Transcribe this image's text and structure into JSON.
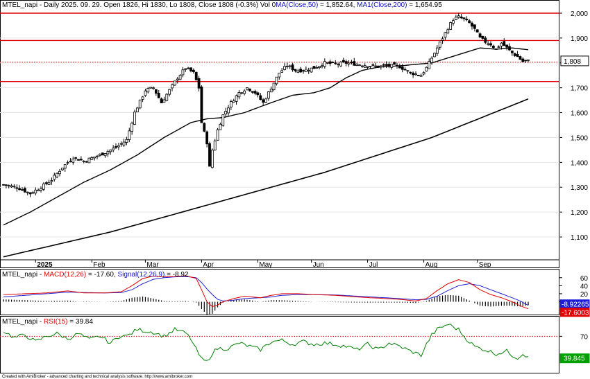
{
  "chart_data": [
    {
      "type": "candlestick",
      "title": {
        "symbol": "MTEL_napi",
        "info": " - Daily 2025. 09. 29. Open 1826, Hi 1830, Lo 1808, Close 1808 (-0.3%) Vol 0",
        "ma50_label": "MA(Close,50)",
        "ma50_value": " = 1,852.64,",
        "ma200_label": "MA1(Close,200)",
        "ma200_value": " = 1,654.95"
      },
      "ylim": [
        1000,
        2030
      ],
      "y_ticks": [
        1100,
        1200,
        1300,
        1400,
        1500,
        1600,
        1700,
        1800,
        1900,
        2000
      ],
      "y_tick_labels": [
        "1,100",
        "1,200",
        "1,300",
        "1,400",
        "1,500",
        "1,600",
        "1,700",
        "1,800",
        "1,900",
        "2,000"
      ],
      "last_price_label": "1,808",
      "last_price": 1808,
      "hlines": [
        2000,
        1890,
        1725
      ],
      "dotted_line": 1803,
      "months": [
        {
          "label": "2025",
          "index": 12
        },
        {
          "label": "Feb",
          "index": 33
        },
        {
          "label": "Mar",
          "index": 53
        },
        {
          "label": "Apr",
          "index": 74
        },
        {
          "label": "May",
          "index": 95
        },
        {
          "label": "Jun",
          "index": 115
        },
        {
          "label": "Jul",
          "index": 136
        },
        {
          "label": "Aug",
          "index": 157
        },
        {
          "label": "Sep",
          "index": 177
        }
      ],
      "n_bars": 197,
      "close_anchors": [
        [
          0,
          1310
        ],
        [
          5,
          1300
        ],
        [
          10,
          1275
        ],
        [
          14,
          1300
        ],
        [
          18,
          1330
        ],
        [
          22,
          1380
        ],
        [
          26,
          1420
        ],
        [
          30,
          1405
        ],
        [
          36,
          1430
        ],
        [
          42,
          1460
        ],
        [
          46,
          1490
        ],
        [
          49,
          1600
        ],
        [
          53,
          1690
        ],
        [
          56,
          1700
        ],
        [
          59,
          1640
        ],
        [
          62,
          1690
        ],
        [
          65,
          1740
        ],
        [
          68,
          1780
        ],
        [
          71,
          1760
        ],
        [
          73,
          1700
        ],
        [
          74,
          1560
        ],
        [
          76,
          1480
        ],
        [
          77,
          1380
        ],
        [
          78,
          1450
        ],
        [
          80,
          1530
        ],
        [
          82,
          1590
        ],
        [
          85,
          1640
        ],
        [
          88,
          1680
        ],
        [
          91,
          1700
        ],
        [
          94,
          1680
        ],
        [
          97,
          1640
        ],
        [
          100,
          1700
        ],
        [
          103,
          1760
        ],
        [
          106,
          1790
        ],
        [
          109,
          1770
        ],
        [
          112,
          1770
        ],
        [
          116,
          1780
        ],
        [
          120,
          1800
        ],
        [
          124,
          1795
        ],
        [
          128,
          1800
        ],
        [
          132,
          1795
        ],
        [
          136,
          1790
        ],
        [
          140,
          1785
        ],
        [
          144,
          1790
        ],
        [
          148,
          1785
        ],
        [
          152,
          1760
        ],
        [
          156,
          1750
        ],
        [
          158,
          1780
        ],
        [
          160,
          1820
        ],
        [
          162,
          1860
        ],
        [
          164,
          1900
        ],
        [
          166,
          1940
        ],
        [
          168,
          1975
        ],
        [
          170,
          1985
        ],
        [
          172,
          1975
        ],
        [
          174,
          1960
        ],
        [
          176,
          1935
        ],
        [
          178,
          1900
        ],
        [
          180,
          1885
        ],
        [
          182,
          1875
        ],
        [
          184,
          1855
        ],
        [
          186,
          1880
        ],
        [
          188,
          1860
        ],
        [
          190,
          1840
        ],
        [
          192,
          1825
        ],
        [
          194,
          1805
        ],
        [
          196,
          1808
        ]
      ],
      "ma50_anchors": [
        [
          0,
          1148
        ],
        [
          10,
          1200
        ],
        [
          20,
          1260
        ],
        [
          30,
          1320
        ],
        [
          40,
          1370
        ],
        [
          50,
          1430
        ],
        [
          60,
          1500
        ],
        [
          70,
          1560
        ],
        [
          76,
          1575
        ],
        [
          82,
          1580
        ],
        [
          90,
          1600
        ],
        [
          100,
          1640
        ],
        [
          108,
          1670
        ],
        [
          116,
          1680
        ],
        [
          122,
          1700
        ],
        [
          128,
          1740
        ],
        [
          134,
          1770
        ],
        [
          140,
          1783
        ],
        [
          150,
          1790
        ],
        [
          160,
          1800
        ],
        [
          166,
          1820
        ],
        [
          172,
          1840
        ],
        [
          178,
          1860
        ],
        [
          184,
          1855
        ],
        [
          190,
          1860
        ],
        [
          196,
          1853
        ]
      ],
      "ma200_anchors": [
        [
          0,
          1020
        ],
        [
          40,
          1120
        ],
        [
          80,
          1240
        ],
        [
          120,
          1360
        ],
        [
          160,
          1500
        ],
        [
          196,
          1655
        ]
      ]
    },
    {
      "type": "line",
      "title": {
        "symbol": "MTEL_napi",
        "sep": " - ",
        "macd_label": "MACD(12,26)",
        "macd_value": " = -17.60,",
        "signal_label": "Signal(12,26,9)",
        "signal_value": " = -8.92"
      },
      "ylim": [
        -25,
        70
      ],
      "y_ticks": [
        0,
        20,
        40,
        60
      ],
      "y_tick_labels": [
        "0",
        "20",
        "40",
        "60"
      ],
      "signal_value_label": "-8.92265",
      "macd_value_label": "-17.6003",
      "macd_anchors": [
        [
          0,
          18
        ],
        [
          8,
          20
        ],
        [
          16,
          22
        ],
        [
          24,
          27
        ],
        [
          30,
          22
        ],
        [
          38,
          22
        ],
        [
          44,
          25
        ],
        [
          48,
          40
        ],
        [
          52,
          58
        ],
        [
          56,
          64
        ],
        [
          60,
          62
        ],
        [
          64,
          63
        ],
        [
          68,
          65
        ],
        [
          72,
          58
        ],
        [
          74,
          30
        ],
        [
          76,
          0
        ],
        [
          78,
          -12
        ],
        [
          80,
          -8
        ],
        [
          82,
          0
        ],
        [
          86,
          8
        ],
        [
          90,
          14
        ],
        [
          96,
          10
        ],
        [
          100,
          16
        ],
        [
          104,
          20
        ],
        [
          110,
          20
        ],
        [
          116,
          18
        ],
        [
          124,
          16
        ],
        [
          132,
          12
        ],
        [
          140,
          9
        ],
        [
          148,
          6
        ],
        [
          154,
          2
        ],
        [
          158,
          8
        ],
        [
          162,
          28
        ],
        [
          166,
          45
        ],
        [
          170,
          55
        ],
        [
          174,
          48
        ],
        [
          178,
          30
        ],
        [
          182,
          18
        ],
        [
          186,
          10
        ],
        [
          190,
          0
        ],
        [
          193,
          -10
        ],
        [
          196,
          -17.6
        ]
      ],
      "signal_anchors": [
        [
          0,
          12
        ],
        [
          8,
          16
        ],
        [
          16,
          20
        ],
        [
          24,
          24
        ],
        [
          30,
          23
        ],
        [
          38,
          22
        ],
        [
          44,
          23
        ],
        [
          48,
          30
        ],
        [
          52,
          45
        ],
        [
          56,
          56
        ],
        [
          60,
          60
        ],
        [
          64,
          62
        ],
        [
          68,
          63
        ],
        [
          72,
          60
        ],
        [
          74,
          48
        ],
        [
          76,
          32
        ],
        [
          78,
          18
        ],
        [
          80,
          6
        ],
        [
          82,
          2
        ],
        [
          86,
          4
        ],
        [
          90,
          8
        ],
        [
          96,
          10
        ],
        [
          100,
          12
        ],
        [
          104,
          16
        ],
        [
          110,
          18
        ],
        [
          116,
          18
        ],
        [
          124,
          17
        ],
        [
          132,
          14
        ],
        [
          140,
          11
        ],
        [
          148,
          8
        ],
        [
          154,
          5
        ],
        [
          158,
          6
        ],
        [
          162,
          14
        ],
        [
          166,
          28
        ],
        [
          170,
          40
        ],
        [
          174,
          45
        ],
        [
          178,
          40
        ],
        [
          182,
          30
        ],
        [
          186,
          20
        ],
        [
          190,
          10
        ],
        [
          193,
          2
        ],
        [
          196,
          -8.92
        ]
      ]
    },
    {
      "type": "line",
      "title": {
        "symbol": "MTEL_napi",
        "sep": " - ",
        "rsi_label": "RSI(15)",
        "rsi_value": " = 39.84"
      },
      "ylim": [
        20,
        95
      ],
      "y_ticks": [
        70
      ],
      "y_tick_labels": [
        "70"
      ],
      "dotted_line": 70,
      "value_label": "39.845",
      "rsi_anchors": [
        [
          0,
          78
        ],
        [
          4,
          68
        ],
        [
          8,
          72
        ],
        [
          12,
          62
        ],
        [
          16,
          70
        ],
        [
          20,
          74
        ],
        [
          24,
          66
        ],
        [
          28,
          74
        ],
        [
          32,
          65
        ],
        [
          36,
          70
        ],
        [
          40,
          60
        ],
        [
          44,
          72
        ],
        [
          46,
          70
        ],
        [
          50,
          80
        ],
        [
          53,
          78
        ],
        [
          56,
          76
        ],
        [
          60,
          70
        ],
        [
          64,
          80
        ],
        [
          68,
          75
        ],
        [
          70,
          66
        ],
        [
          72,
          50
        ],
        [
          74,
          36
        ],
        [
          76,
          32
        ],
        [
          78,
          45
        ],
        [
          80,
          52
        ],
        [
          84,
          52
        ],
        [
          88,
          60
        ],
        [
          92,
          55
        ],
        [
          96,
          50
        ],
        [
          100,
          62
        ],
        [
          104,
          64
        ],
        [
          108,
          58
        ],
        [
          112,
          62
        ],
        [
          116,
          58
        ],
        [
          120,
          60
        ],
        [
          124,
          58
        ],
        [
          128,
          55
        ],
        [
          132,
          50
        ],
        [
          136,
          58
        ],
        [
          140,
          50
        ],
        [
          144,
          60
        ],
        [
          148,
          55
        ],
        [
          152,
          48
        ],
        [
          156,
          42
        ],
        [
          158,
          58
        ],
        [
          160,
          72
        ],
        [
          162,
          80
        ],
        [
          164,
          84
        ],
        [
          166,
          88
        ],
        [
          168,
          84
        ],
        [
          170,
          80
        ],
        [
          172,
          70
        ],
        [
          174,
          62
        ],
        [
          176,
          55
        ],
        [
          178,
          52
        ],
        [
          180,
          50
        ],
        [
          184,
          44
        ],
        [
          188,
          48
        ],
        [
          190,
          42
        ],
        [
          192,
          38
        ],
        [
          194,
          44
        ],
        [
          196,
          39.84
        ]
      ]
    }
  ],
  "footer": "Created with AmiBroker - advanced charting and technical analysis software. http://www.amibroker.com"
}
